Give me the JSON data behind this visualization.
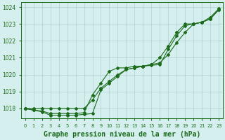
{
  "title": "Graphe pression niveau de la mer (hPa)",
  "x": [
    0,
    1,
    2,
    3,
    4,
    5,
    6,
    7,
    8,
    9,
    10,
    11,
    12,
    13,
    14,
    15,
    16,
    17,
    18,
    19,
    20,
    21,
    22,
    23
  ],
  "line1": [
    1018.0,
    1018.0,
    1018.0,
    1018.0,
    1018.0,
    1018.0,
    1018.0,
    1018.0,
    1018.5,
    1019.2,
    1019.6,
    1020.0,
    1020.3,
    1020.4,
    1020.5,
    1020.6,
    1020.7,
    1021.2,
    1021.9,
    1022.5,
    1023.0,
    1023.1,
    1023.4,
    1023.9
  ],
  "line2": [
    1018.0,
    1017.9,
    1017.85,
    1017.7,
    1017.7,
    1017.7,
    1017.7,
    1017.75,
    1018.8,
    1019.5,
    1020.2,
    1020.4,
    1020.4,
    1020.5,
    1020.5,
    1020.6,
    1021.0,
    1021.7,
    1022.5,
    1023.0,
    1023.0,
    1023.1,
    1023.3,
    1023.85
  ],
  "line3": [
    1018.0,
    1017.9,
    1017.8,
    1017.6,
    1017.6,
    1017.6,
    1017.6,
    1017.65,
    1017.7,
    1019.1,
    1019.5,
    1019.9,
    1020.3,
    1020.4,
    1020.5,
    1020.55,
    1020.6,
    1021.5,
    1022.3,
    1022.9,
    1023.0,
    1023.1,
    1023.3,
    1023.85
  ],
  "ylim": [
    1017.4,
    1024.3
  ],
  "yticks": [
    1018,
    1019,
    1020,
    1021,
    1022,
    1023,
    1024
  ],
  "line_color": "#1a6b1a",
  "bg_color": "#d5eeee",
  "grid_color": "#afd0d0",
  "tick_label_color": "#1a6b1a",
  "title_color": "#1a6b1a",
  "title_fontsize": 7.0,
  "marker": "D",
  "marker_size": 2.0,
  "linewidth": 0.8
}
